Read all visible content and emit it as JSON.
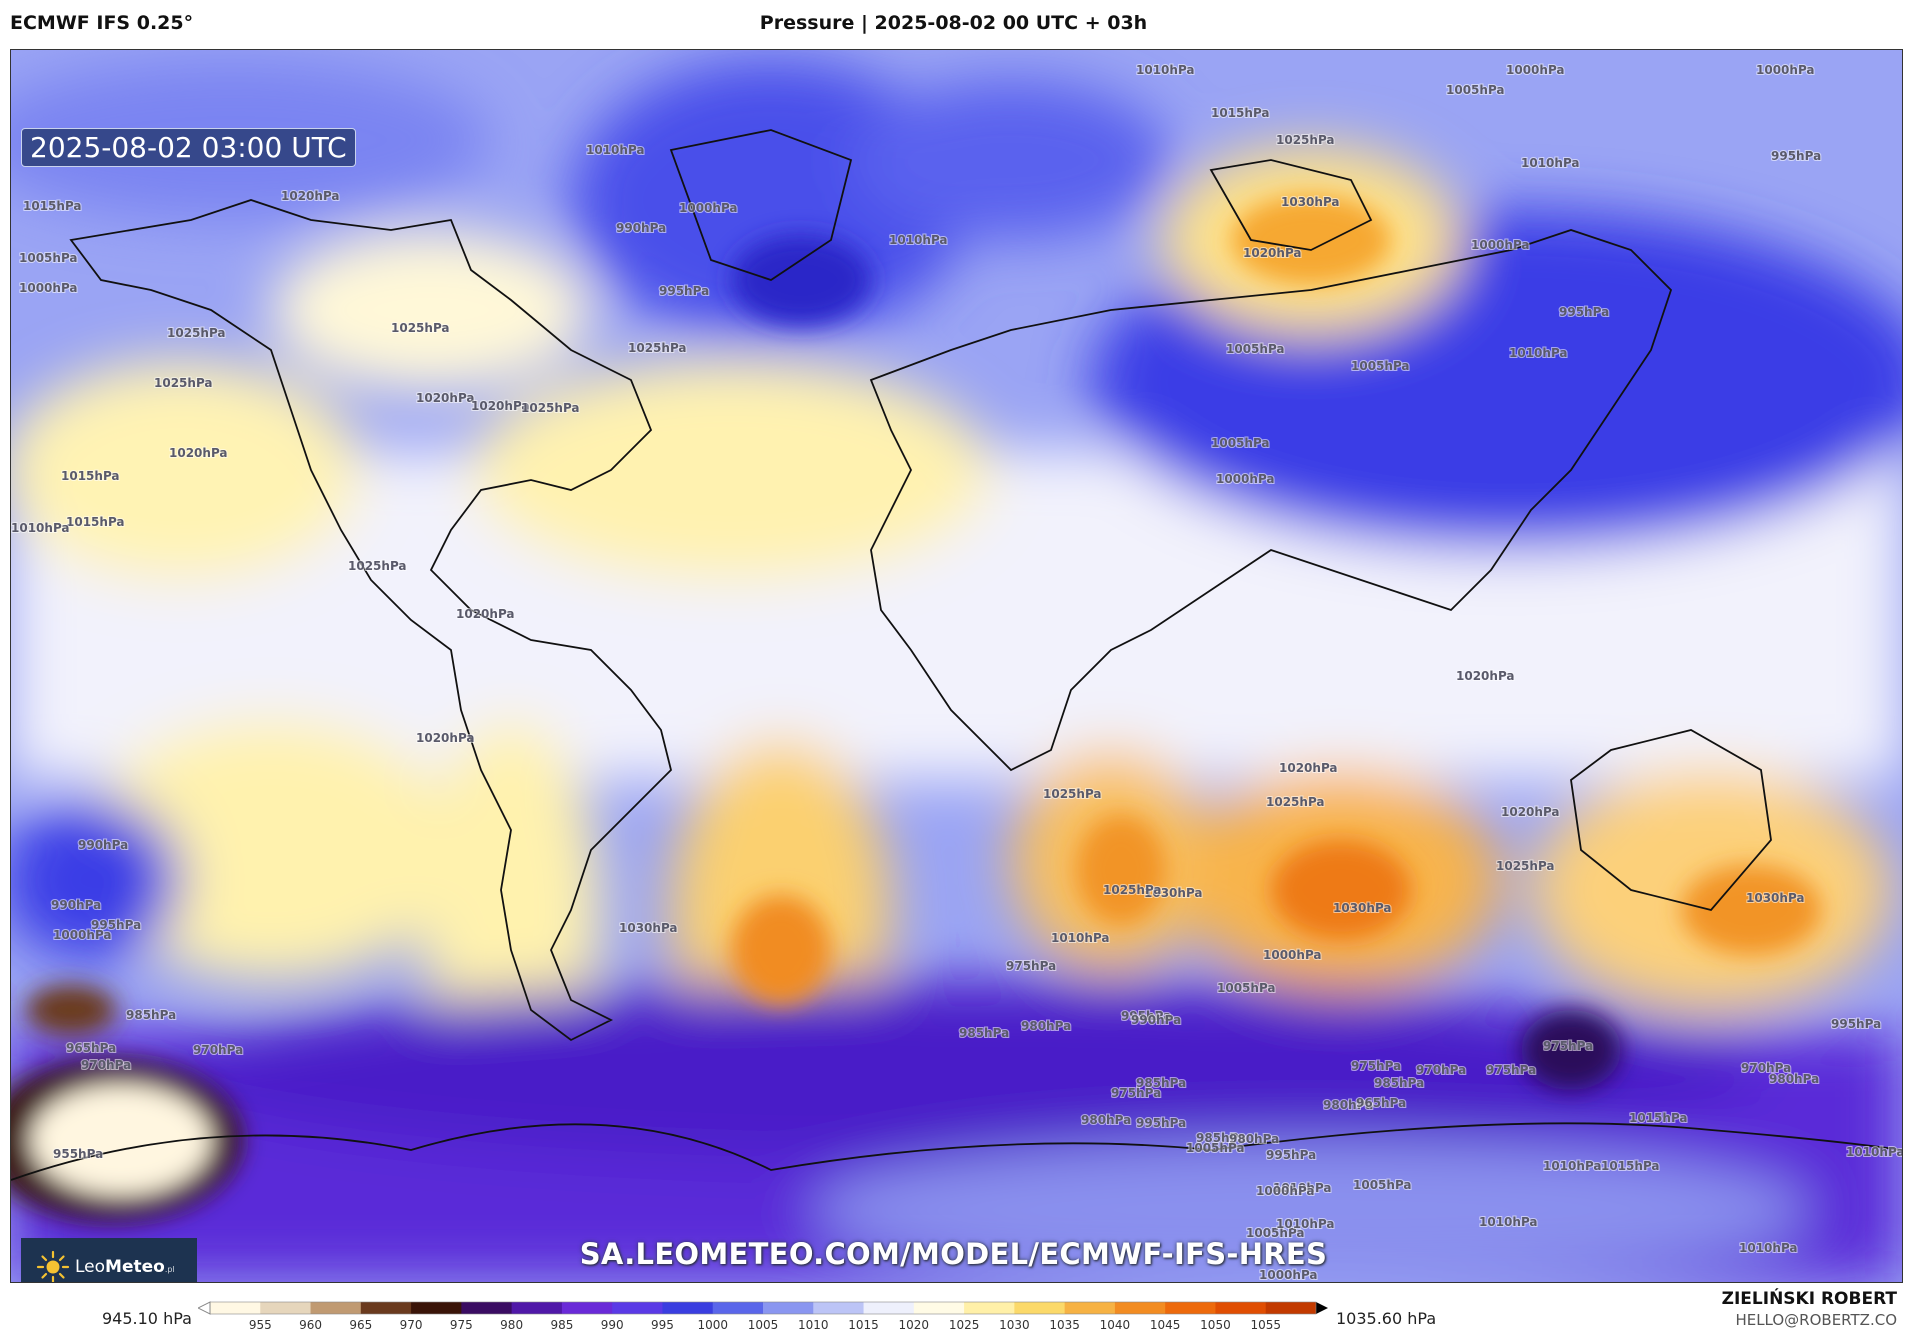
{
  "header": {
    "model": "ECMWF IFS 0.25°",
    "title": "Pressure | 2025-08-02 00 UTC + 03h"
  },
  "map": {
    "timestamp": "2025-08-02 03:00 UTC",
    "watermark_url": "SA.LEOMETEO.COM/MODEL/ECMWF-IFS-HRES",
    "logo": {
      "brand_light": "Leo",
      "brand_bold": "Meteo",
      "brand_suffix": ".pl",
      "icon": "sun-icon"
    },
    "isobar_labels": [
      "1010hPa",
      "1000hPa",
      "1005hPa",
      "1015hPa",
      "1025hPa",
      "1030hPa",
      "1020hPa",
      "1010hPa",
      "1000hPa",
      "995hPa",
      "1010hPa",
      "1005hPa",
      "995hPa",
      "990hPa",
      "995hPa",
      "1000hPa",
      "1010hPa",
      "1015hPa",
      "1020hPa",
      "1005hPa",
      "1000hPa",
      "1005hPa",
      "1025hPa",
      "1025hPa",
      "1025hPa",
      "1025hPa",
      "1020hPa",
      "1020hPa",
      "1025hPa",
      "1015hPa",
      "1020hPa",
      "1015hPa",
      "1010hPa",
      "1005hPa",
      "1000hPa",
      "1010hPa",
      "1020hPa",
      "1025hPa",
      "1020hPa",
      "1020hPa",
      "1025hPa",
      "1030hPa",
      "1025hPa",
      "1030hPa",
      "1020hPa",
      "1025hPa",
      "1030hPa",
      "1025hPa",
      "1030hPa",
      "1020hPa",
      "1010hPa",
      "1005hPa",
      "1000hPa",
      "990hPa",
      "995hPa",
      "1000hPa",
      "990hPa",
      "985hPa",
      "970hPa",
      "965hPa",
      "970hPa",
      "955hPa",
      "975hPa",
      "980hPa",
      "985hPa",
      "995hPa",
      "975hPa",
      "985hPa",
      "980hPa",
      "990hPa",
      "975hPa",
      "985hPa",
      "980hPa",
      "995hPa",
      "985hPa",
      "980hPa",
      "1005hPa",
      "995hPa",
      "1010hPa",
      "1000hPa",
      "1005hPa",
      "1010hPa",
      "965hPa",
      "970hPa",
      "975hPa",
      "975hPa",
      "970hPa",
      "995hPa",
      "980hPa",
      "1015hPa",
      "1010hPa",
      "1005hPa",
      "1000hPa",
      "1010hPa",
      "1010hPa",
      "1015hPa",
      "1010hPa",
      "1000hPa"
    ]
  },
  "colorbar": {
    "min_label": "945.10 hPa",
    "max_label": "1035.60 hPa",
    "ticks": [
      "955",
      "960",
      "965",
      "970",
      "975",
      "980",
      "985",
      "990",
      "995",
      "1000",
      "1005",
      "1010",
      "1015",
      "1020",
      "1025",
      "1030",
      "1035",
      "1040",
      "1045",
      "1050",
      "1055"
    ],
    "colors": [
      "#fff8e4",
      "#e6d6bc",
      "#c09a72",
      "#6a3a1e",
      "#3a1408",
      "#3a0c62",
      "#5018a8",
      "#6a2ad8",
      "#5a3ae6",
      "#3a3ee0",
      "#5a66ea",
      "#8a96f0",
      "#bcc4f6",
      "#eef0fc",
      "#fffbe6",
      "#fff0a8",
      "#fbd96a",
      "#f6b244",
      "#f28c22",
      "#ed6a0c",
      "#e04e02",
      "#c23a00"
    ]
  },
  "author": {
    "name": "ZIELIŃSKI ROBERT",
    "email": "HELLO@ROBERTZ.CO"
  }
}
